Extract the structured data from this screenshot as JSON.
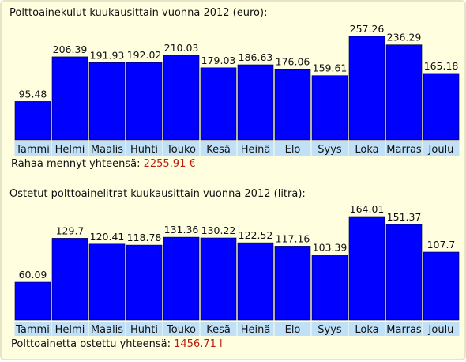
{
  "chart_data": [
    {
      "type": "bar",
      "title": "Polttoainekulut kuukausittain vuonna 2012 (euro):",
      "categories": [
        "Tammi",
        "Helmi",
        "Maalis",
        "Huhti",
        "Touko",
        "Kesä",
        "Heinä",
        "Elo",
        "Syys",
        "Loka",
        "Marras",
        "Joulu"
      ],
      "values": [
        95.48,
        206.39,
        191.93,
        192.02,
        210.03,
        179.03,
        186.63,
        176.06,
        159.61,
        257.26,
        236.29,
        165.18
      ],
      "value_labels": [
        "95.48",
        "206.39",
        "191.93",
        "192.02",
        "210.03",
        "179.03",
        "186.63",
        "176.06",
        "159.61",
        "257.26",
        "236.29",
        "165.18"
      ],
      "total_label": "Rahaa mennyt yhteensä:",
      "total_value": "2255.91 €",
      "bar_color": "#0000ff",
      "category_band_color": "#bfe0f7",
      "grid": false,
      "legend": "none"
    },
    {
      "type": "bar",
      "title": "Ostetut polttoainelitrat kuukausittain vuonna 2012 (litra):",
      "categories": [
        "Tammi",
        "Helmi",
        "Maalis",
        "Huhti",
        "Touko",
        "Kesä",
        "Heinä",
        "Elo",
        "Syys",
        "Loka",
        "Marras",
        "Joulu"
      ],
      "values": [
        60.09,
        129.7,
        120.41,
        118.78,
        131.36,
        130.22,
        122.52,
        117.16,
        103.39,
        164.01,
        151.37,
        107.7
      ],
      "value_labels": [
        "60.09",
        "129.7",
        "120.41",
        "118.78",
        "131.36",
        "130.22",
        "122.52",
        "117.16",
        "103.39",
        "164.01",
        "151.37",
        "107.7"
      ],
      "total_label": "Polttoainetta ostettu yhteensä:",
      "total_value": "1456.71 l",
      "bar_color": "#0000ff",
      "category_band_color": "#bfe0f7",
      "grid": false,
      "legend": "none"
    }
  ],
  "accent_colors": {
    "total_value": "#b81e0e",
    "panel_background": "#ffffe0"
  }
}
